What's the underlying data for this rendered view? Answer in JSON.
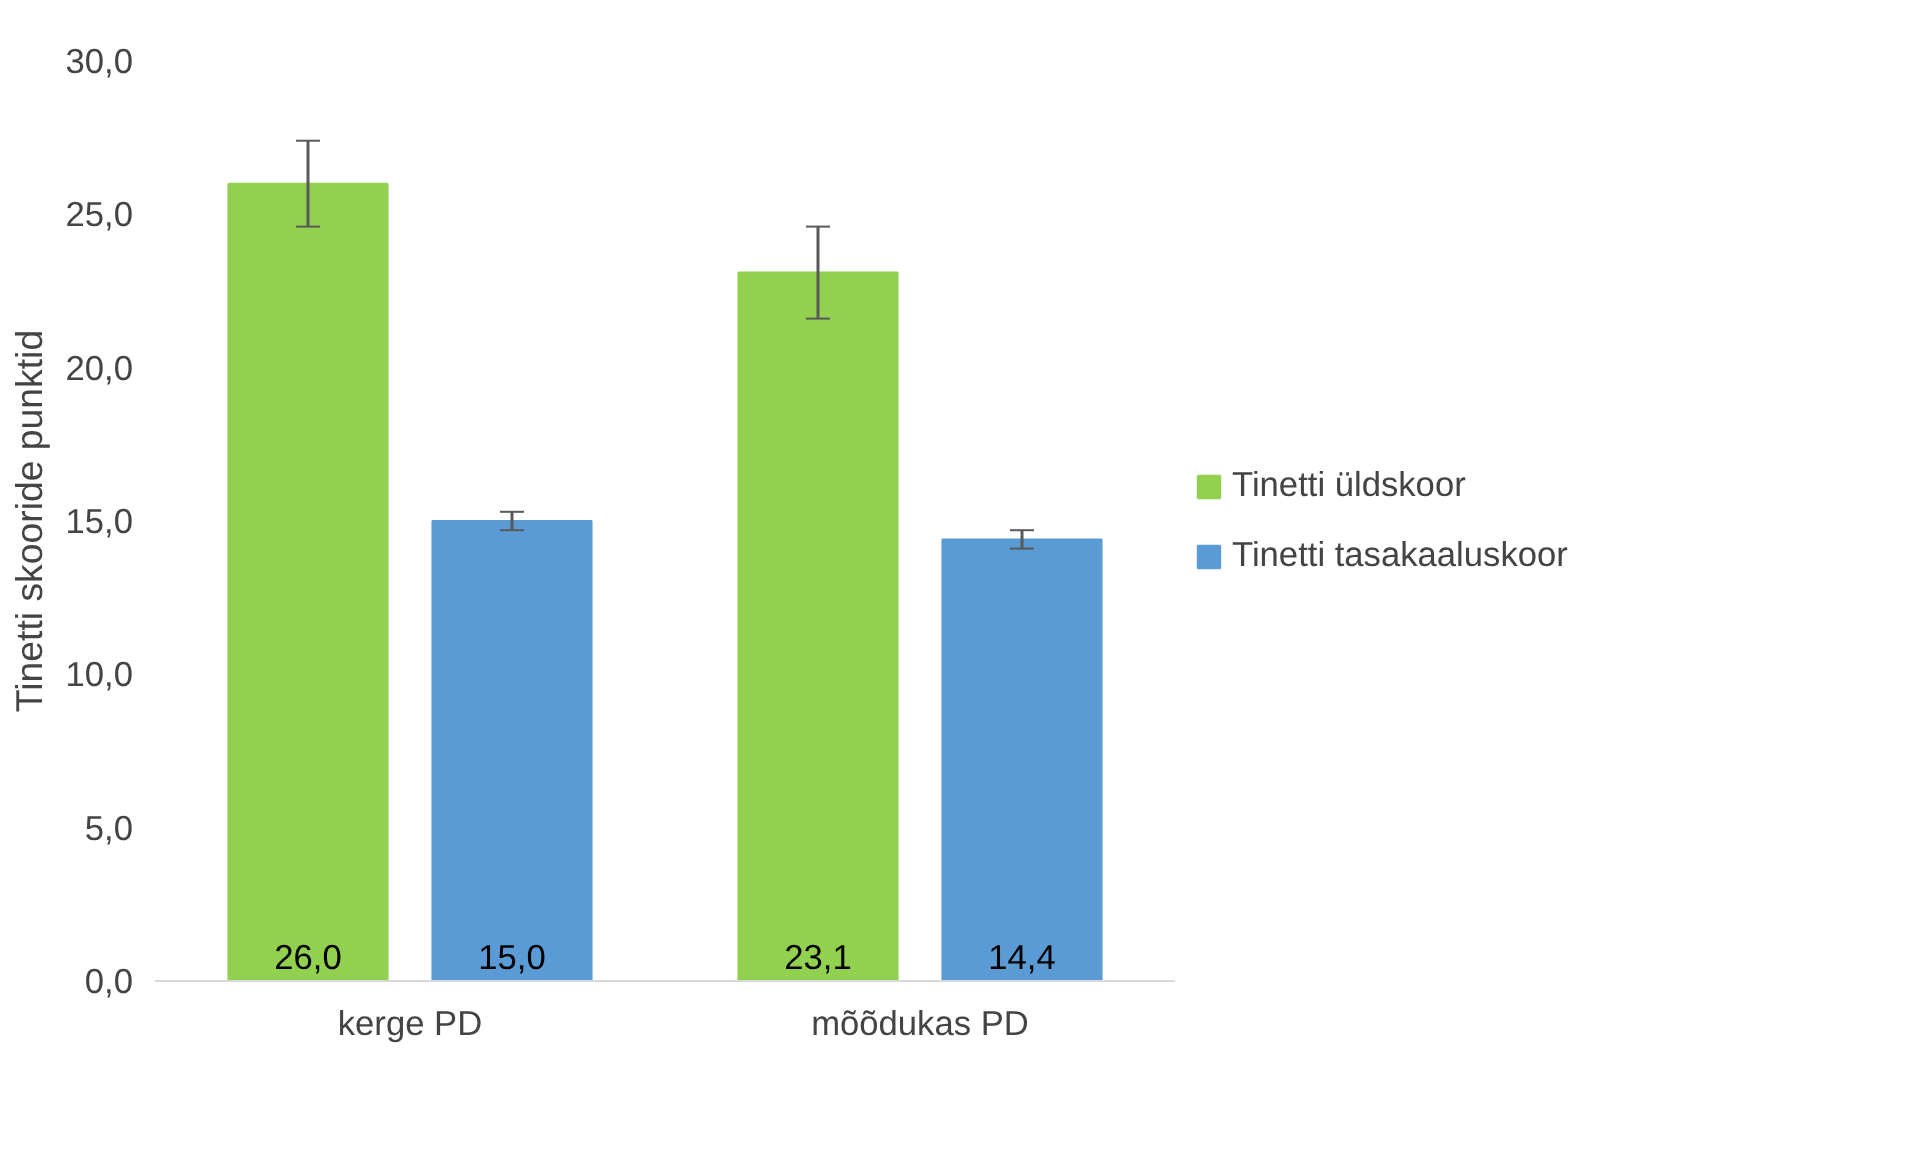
{
  "chart_data": {
    "type": "bar",
    "ylabel": "Tinetti skooride punktid",
    "categories": [
      "kerge PD",
      "mõõdukas PD"
    ],
    "series": [
      {
        "name": "Tinetti üldskoor",
        "color": "#92d050",
        "values": [
          26.0,
          23.1
        ],
        "errors": [
          1.4,
          1.5
        ],
        "value_labels": [
          "26,0",
          "23,1"
        ]
      },
      {
        "name": "Tinetti tasakaaluskoor",
        "color": "#5b9bd5",
        "values": [
          15.0,
          14.4
        ],
        "errors": [
          0.3,
          0.3
        ],
        "value_labels": [
          "15,0",
          "14,4"
        ]
      }
    ],
    "ylim": [
      0,
      30
    ],
    "yticks": [
      {
        "value": 0,
        "label": "0,0"
      },
      {
        "value": 5,
        "label": "5,0"
      },
      {
        "value": 10,
        "label": "10,0"
      },
      {
        "value": 15,
        "label": "15,0"
      },
      {
        "value": 20,
        "label": "20,0"
      },
      {
        "value": 25,
        "label": "25,0"
      },
      {
        "value": 30,
        "label": "30,0"
      }
    ],
    "grid": false,
    "legend": "right"
  }
}
